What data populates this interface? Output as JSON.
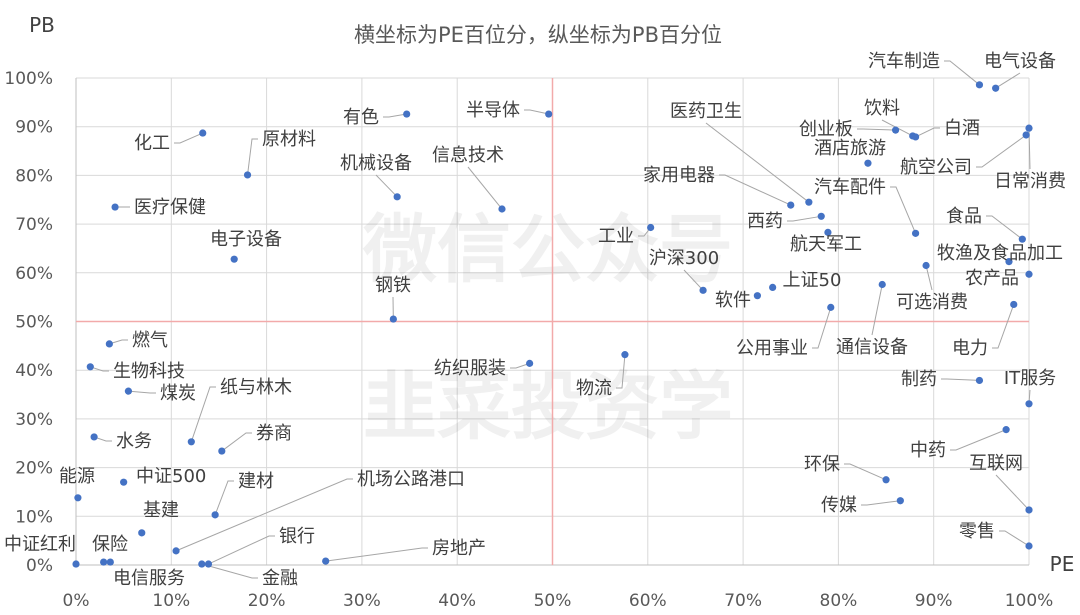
{
  "chart_data": {
    "type": "scatter",
    "title": "横坐标为PE百位分，纵坐标为PB百分位",
    "xlabel": "PE",
    "ylabel": "PB",
    "xlim": [
      0,
      100
    ],
    "ylim": [
      0,
      100
    ],
    "grid": true,
    "x_ticks": [
      "0%",
      "10%",
      "20%",
      "30%",
      "40%",
      "50%",
      "60%",
      "70%",
      "80%",
      "90%",
      "100%"
    ],
    "y_ticks": [
      "0%",
      "10%",
      "20%",
      "30%",
      "40%",
      "50%",
      "60%",
      "70%",
      "80%",
      "90%",
      "100%"
    ],
    "reference_lines": {
      "x": 50,
      "y": 50,
      "color": "#f2aaaa"
    },
    "marker_color": "#4472c4",
    "watermark": [
      "微信公众号",
      "韭菜投资学"
    ],
    "points": [
      {
        "name": "汽车制造",
        "pe": 94.8,
        "pb": 98.6
      },
      {
        "name": "电气设备",
        "pe": 96.5,
        "pb": 97.9
      },
      {
        "name": "饮料",
        "pe": 87.8,
        "pb": 88.1
      },
      {
        "name": "创业板",
        "pe": 86.0,
        "pb": 89.3
      },
      {
        "name": "白酒",
        "pe": 88.1,
        "pb": 87.9
      },
      {
        "name": "酒店旅游",
        "pe": 83.1,
        "pb": 82.5
      },
      {
        "name": "航空公司",
        "pe": 99.7,
        "pb": 88.3
      },
      {
        "name": "日常消费",
        "pe": 100,
        "pb": 89.7
      },
      {
        "name": "医药卫生",
        "pe": 76.9,
        "pb": 74.5
      },
      {
        "name": "家用电器",
        "pe": 75.0,
        "pb": 73.9
      },
      {
        "name": "汽车配件",
        "pe": 88.1,
        "pb": 68.1
      },
      {
        "name": "西药",
        "pe": 78.2,
        "pb": 71.6
      },
      {
        "name": "航天军工",
        "pe": 78.9,
        "pb": 68.3
      },
      {
        "name": "食品",
        "pe": 99.3,
        "pb": 66.9
      },
      {
        "name": "牧渔及食品加工",
        "pe": 97.9,
        "pb": 62.3
      },
      {
        "name": "农产品",
        "pe": 100,
        "pb": 59.7
      },
      {
        "name": "可选消费",
        "pe": 89.2,
        "pb": 61.5
      },
      {
        "name": "电力",
        "pe": 98.4,
        "pb": 53.5
      },
      {
        "name": "通信设备",
        "pe": 84.6,
        "pb": 57.6
      },
      {
        "name": "上证50",
        "pe": 73.1,
        "pb": 57.0
      },
      {
        "name": "软件",
        "pe": 71.5,
        "pb": 55.3
      },
      {
        "name": "沪深300",
        "pe": 65.8,
        "pb": 56.4
      },
      {
        "name": "公用事业",
        "pe": 79.2,
        "pb": 52.9
      },
      {
        "name": "工业",
        "pe": 60.3,
        "pb": 69.3
      },
      {
        "name": "半导体",
        "pe": 49.6,
        "pb": 92.6
      },
      {
        "name": "有色",
        "pe": 34.7,
        "pb": 92.6
      },
      {
        "name": "信息技术",
        "pe": 44.7,
        "pb": 73.1
      },
      {
        "name": "机械设备",
        "pe": 33.7,
        "pb": 75.6
      },
      {
        "name": "原材料",
        "pe": 18.0,
        "pb": 80.1
      },
      {
        "name": "化工",
        "pe": 13.3,
        "pb": 88.7
      },
      {
        "name": "医疗保健",
        "pe": 4.1,
        "pb": 73.5
      },
      {
        "name": "电子设备",
        "pe": 16.6,
        "pb": 62.8
      },
      {
        "name": "钢铁",
        "pe": 33.3,
        "pb": 50.5
      },
      {
        "name": "纺织服装",
        "pe": 47.6,
        "pb": 41.4
      },
      {
        "name": "物流",
        "pe": 57.6,
        "pb": 43.2
      },
      {
        "name": "燃气",
        "pe": 3.5,
        "pb": 45.4
      },
      {
        "name": "生物科技",
        "pe": 1.5,
        "pb": 40.7
      },
      {
        "name": "煤炭",
        "pe": 5.5,
        "pb": 35.7
      },
      {
        "name": "纸与林木",
        "pe": 12.1,
        "pb": 25.3
      },
      {
        "name": "水务",
        "pe": 1.9,
        "pb": 26.3
      },
      {
        "name": "券商",
        "pe": 15.3,
        "pb": 23.4
      },
      {
        "name": "能源",
        "pe": 0.2,
        "pb": 13.8
      },
      {
        "name": "中证500",
        "pe": 5.0,
        "pb": 17.0
      },
      {
        "name": "建材",
        "pe": 14.6,
        "pb": 10.3
      },
      {
        "name": "基建",
        "pe": 6.9,
        "pb": 6.6
      },
      {
        "name": "机场公路港口",
        "pe": 10.5,
        "pb": 2.9
      },
      {
        "name": "中证红利",
        "pe": 0.0,
        "pb": 0.2
      },
      {
        "name": "保险",
        "pe": 3.6,
        "pb": 0.6
      },
      {
        "name": "电信服务",
        "pe": 2.9,
        "pb": 0.6
      },
      {
        "name": "银行",
        "pe": 13.9,
        "pb": 0.2
      },
      {
        "name": "金融",
        "pe": 13.2,
        "pb": 0.2
      },
      {
        "name": "房地产",
        "pe": 26.2,
        "pb": 0.8
      },
      {
        "name": "环保",
        "pe": 85.0,
        "pb": 17.5
      },
      {
        "name": "传媒",
        "pe": 86.5,
        "pb": 13.2
      },
      {
        "name": "制药",
        "pe": 94.8,
        "pb": 37.9
      },
      {
        "name": "IT服务",
        "pe": 100,
        "pb": 33.1
      },
      {
        "name": "中药",
        "pe": 97.6,
        "pb": 27.8
      },
      {
        "name": "互联网",
        "pe": 100,
        "pb": 11.3
      },
      {
        "name": "零售",
        "pe": 100,
        "pb": 3.9
      }
    ]
  }
}
